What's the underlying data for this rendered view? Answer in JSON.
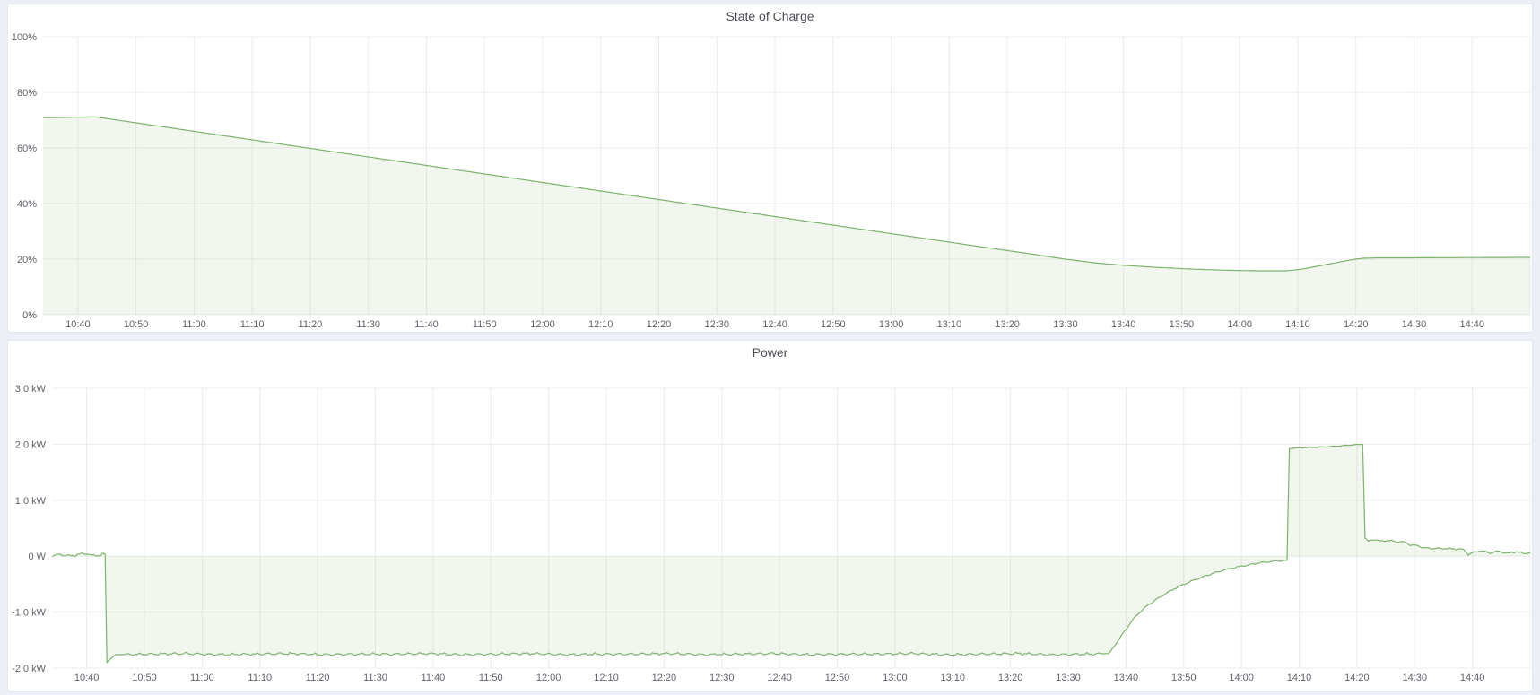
{
  "page": {
    "background_color": "#eceff5",
    "panel_background_color": "#ffffff",
    "gridline_color": "#ececec",
    "tick_text_color": "#5f646b",
    "title_text_color": "#4a4e54"
  },
  "panels": [
    {
      "title": "State of Charge"
    },
    {
      "title": "Power"
    }
  ],
  "chart_data": [
    {
      "type": "area",
      "title": "State of Charge",
      "xlabel": "",
      "ylabel": "",
      "grid": true,
      "legend_position": "none",
      "x_unit": "minutes-of-day",
      "x_range": [
        634,
        890
      ],
      "ylim": [
        0,
        100
      ],
      "y_ticks": [
        {
          "v": 100,
          "label": "100%"
        },
        {
          "v": 80,
          "label": "80%"
        },
        {
          "v": 60,
          "label": "60%"
        },
        {
          "v": 40,
          "label": "40%"
        },
        {
          "v": 20,
          "label": "20%"
        },
        {
          "v": 0,
          "label": "0%"
        }
      ],
      "x_ticks": [
        {
          "m": 640,
          "label": "10:40"
        },
        {
          "m": 650,
          "label": "10:50"
        },
        {
          "m": 660,
          "label": "11:00"
        },
        {
          "m": 670,
          "label": "11:10"
        },
        {
          "m": 680,
          "label": "11:20"
        },
        {
          "m": 690,
          "label": "11:30"
        },
        {
          "m": 700,
          "label": "11:40"
        },
        {
          "m": 710,
          "label": "11:50"
        },
        {
          "m": 720,
          "label": "12:00"
        },
        {
          "m": 730,
          "label": "12:10"
        },
        {
          "m": 740,
          "label": "12:20"
        },
        {
          "m": 750,
          "label": "12:30"
        },
        {
          "m": 760,
          "label": "12:40"
        },
        {
          "m": 770,
          "label": "12:50"
        },
        {
          "m": 780,
          "label": "13:00"
        },
        {
          "m": 790,
          "label": "13:10"
        },
        {
          "m": 800,
          "label": "13:20"
        },
        {
          "m": 810,
          "label": "13:30"
        },
        {
          "m": 820,
          "label": "13:40"
        },
        {
          "m": 830,
          "label": "13:50"
        },
        {
          "m": 840,
          "label": "14:00"
        },
        {
          "m": 850,
          "label": "14:10"
        },
        {
          "m": 860,
          "label": "14:20"
        },
        {
          "m": 870,
          "label": "14:30"
        },
        {
          "m": 880,
          "label": "14:40"
        },
        {
          "m": 890,
          "label": ""
        }
      ],
      "series": [
        {
          "name": "State of Charge",
          "unit": "%",
          "color": "#7eb26d",
          "fill": "rgba(126,178,109,0.11)",
          "baseline": 0,
          "noise": [],
          "points": [
            [
              634,
              70.9
            ],
            [
              638,
              71.0
            ],
            [
              641,
              71.1
            ],
            [
              643,
              71.2
            ],
            [
              658,
              66.6
            ],
            [
              673,
              62.0
            ],
            [
              688,
              57.4
            ],
            [
              703,
              52.8
            ],
            [
              718,
              48.2
            ],
            [
              733,
              43.6
            ],
            [
              748,
              39.0
            ],
            [
              763,
              34.4
            ],
            [
              778,
              29.8
            ],
            [
              793,
              25.2
            ],
            [
              803,
              22.2
            ],
            [
              810,
              20.0
            ],
            [
              815,
              18.7
            ],
            [
              820,
              17.8
            ],
            [
              826,
              17.0
            ],
            [
              832,
              16.4
            ],
            [
              838,
              16.0
            ],
            [
              843,
              15.8
            ],
            [
              848,
              15.8
            ],
            [
              851,
              16.5
            ],
            [
              854,
              17.7
            ],
            [
              857,
              18.9
            ],
            [
              859,
              19.7
            ],
            [
              861,
              20.3
            ],
            [
              864,
              20.5
            ],
            [
              870,
              20.5
            ],
            [
              876,
              20.55
            ],
            [
              882,
              20.6
            ],
            [
              890,
              20.65
            ]
          ]
        }
      ]
    },
    {
      "type": "area",
      "title": "Power",
      "xlabel": "",
      "ylabel": "",
      "grid": true,
      "legend_position": "none",
      "x_unit": "minutes-of-day",
      "x_range": [
        634,
        890
      ],
      "ylim": [
        -2,
        3
      ],
      "y_ticks": [
        {
          "v": 3,
          "label": "3.0 kW"
        },
        {
          "v": 2,
          "label": "2.0 kW"
        },
        {
          "v": 1,
          "label": "1.0 kW"
        },
        {
          "v": 0,
          "label": "0 W"
        },
        {
          "v": -1,
          "label": "-1.0 kW"
        },
        {
          "v": -2,
          "label": "-2.0 kW"
        }
      ],
      "x_ticks": [
        {
          "m": 640,
          "label": "10:40"
        },
        {
          "m": 650,
          "label": "10:50"
        },
        {
          "m": 660,
          "label": "11:00"
        },
        {
          "m": 670,
          "label": "11:10"
        },
        {
          "m": 680,
          "label": "11:20"
        },
        {
          "m": 690,
          "label": "11:30"
        },
        {
          "m": 700,
          "label": "11:40"
        },
        {
          "m": 710,
          "label": "11:50"
        },
        {
          "m": 720,
          "label": "12:00"
        },
        {
          "m": 730,
          "label": "12:10"
        },
        {
          "m": 740,
          "label": "12:20"
        },
        {
          "m": 750,
          "label": "12:30"
        },
        {
          "m": 760,
          "label": "12:40"
        },
        {
          "m": 770,
          "label": "12:50"
        },
        {
          "m": 780,
          "label": "13:00"
        },
        {
          "m": 790,
          "label": "13:10"
        },
        {
          "m": 800,
          "label": "13:20"
        },
        {
          "m": 810,
          "label": "13:30"
        },
        {
          "m": 820,
          "label": "13:40"
        },
        {
          "m": 830,
          "label": "13:50"
        },
        {
          "m": 840,
          "label": "14:00"
        },
        {
          "m": 850,
          "label": "14:10"
        },
        {
          "m": 860,
          "label": "14:20"
        },
        {
          "m": 870,
          "label": "14:30"
        },
        {
          "m": 880,
          "label": "14:40"
        },
        {
          "m": 890,
          "label": ""
        }
      ],
      "series": [
        {
          "name": "Power",
          "unit": "kW",
          "color": "#7eb26d",
          "fill": "rgba(126,178,109,0.11)",
          "baseline": 0,
          "noise": [
            {
              "from": 634,
              "to": 643,
              "amp": 0.02
            },
            {
              "from": 646,
              "to": 816,
              "amp": 0.02
            },
            {
              "from": 819,
              "to": 847,
              "amp": 0.012
            },
            {
              "from": 849,
              "to": 860,
              "amp": 0.006
            },
            {
              "from": 862,
              "to": 890,
              "amp": 0.012
            }
          ],
          "points": [
            [
              634,
              0.01
            ],
            [
              635.5,
              0.03
            ],
            [
              637,
              0.0
            ],
            [
              638.5,
              0.03
            ],
            [
              640,
              0.05
            ],
            [
              641,
              0.01
            ],
            [
              642.2,
              0.02
            ],
            [
              643.2,
              0.04
            ],
            [
              643.5,
              -1.9
            ],
            [
              644.2,
              -1.83
            ],
            [
              645,
              -1.76
            ],
            [
              651,
              -1.75
            ],
            [
              657,
              -1.74
            ],
            [
              663,
              -1.76
            ],
            [
              669,
              -1.75
            ],
            [
              675,
              -1.74
            ],
            [
              681,
              -1.76
            ],
            [
              687,
              -1.75
            ],
            [
              693,
              -1.75
            ],
            [
              699,
              -1.74
            ],
            [
              705,
              -1.76
            ],
            [
              711,
              -1.75
            ],
            [
              717,
              -1.74
            ],
            [
              723,
              -1.76
            ],
            [
              729,
              -1.75
            ],
            [
              735,
              -1.75
            ],
            [
              741,
              -1.74
            ],
            [
              747,
              -1.76
            ],
            [
              753,
              -1.75
            ],
            [
              759,
              -1.74
            ],
            [
              765,
              -1.76
            ],
            [
              771,
              -1.75
            ],
            [
              777,
              -1.75
            ],
            [
              783,
              -1.74
            ],
            [
              789,
              -1.76
            ],
            [
              795,
              -1.75
            ],
            [
              801,
              -1.74
            ],
            [
              807,
              -1.76
            ],
            [
              813,
              -1.75
            ],
            [
              817,
              -1.74
            ],
            [
              818.2,
              -1.58
            ],
            [
              819.5,
              -1.38
            ],
            [
              821,
              -1.16
            ],
            [
              822,
              -1.04
            ],
            [
              823.5,
              -0.9
            ],
            [
              825,
              -0.79
            ],
            [
              827,
              -0.66
            ],
            [
              829,
              -0.55
            ],
            [
              831,
              -0.46
            ],
            [
              833,
              -0.38
            ],
            [
              835,
              -0.31
            ],
            [
              837,
              -0.25
            ],
            [
              839,
              -0.2
            ],
            [
              841,
              -0.16
            ],
            [
              843,
              -0.12
            ],
            [
              845,
              -0.1
            ],
            [
              847,
              -0.08
            ],
            [
              847.9,
              -0.07
            ],
            [
              848.3,
              1.92
            ],
            [
              849,
              1.93
            ],
            [
              851,
              1.94
            ],
            [
              854,
              1.95
            ],
            [
              857,
              1.97
            ],
            [
              859.5,
              1.99
            ],
            [
              861,
              2.0
            ],
            [
              861.4,
              0.33
            ],
            [
              862,
              0.27
            ],
            [
              863,
              0.3
            ],
            [
              864,
              0.27
            ],
            [
              865.5,
              0.28
            ],
            [
              867,
              0.26
            ],
            [
              868.5,
              0.25
            ],
            [
              869.2,
              0.2
            ],
            [
              870.5,
              0.19
            ],
            [
              871.5,
              0.15
            ],
            [
              873,
              0.14
            ],
            [
              875,
              0.14
            ],
            [
              877,
              0.13
            ],
            [
              878.5,
              0.12
            ],
            [
              879.3,
              0.03
            ],
            [
              880,
              0.06
            ],
            [
              881.5,
              0.1
            ],
            [
              883,
              0.06
            ],
            [
              884.5,
              0.09
            ],
            [
              886,
              0.05
            ],
            [
              887.5,
              0.08
            ],
            [
              889,
              0.05
            ],
            [
              890,
              0.06
            ]
          ]
        }
      ]
    }
  ]
}
